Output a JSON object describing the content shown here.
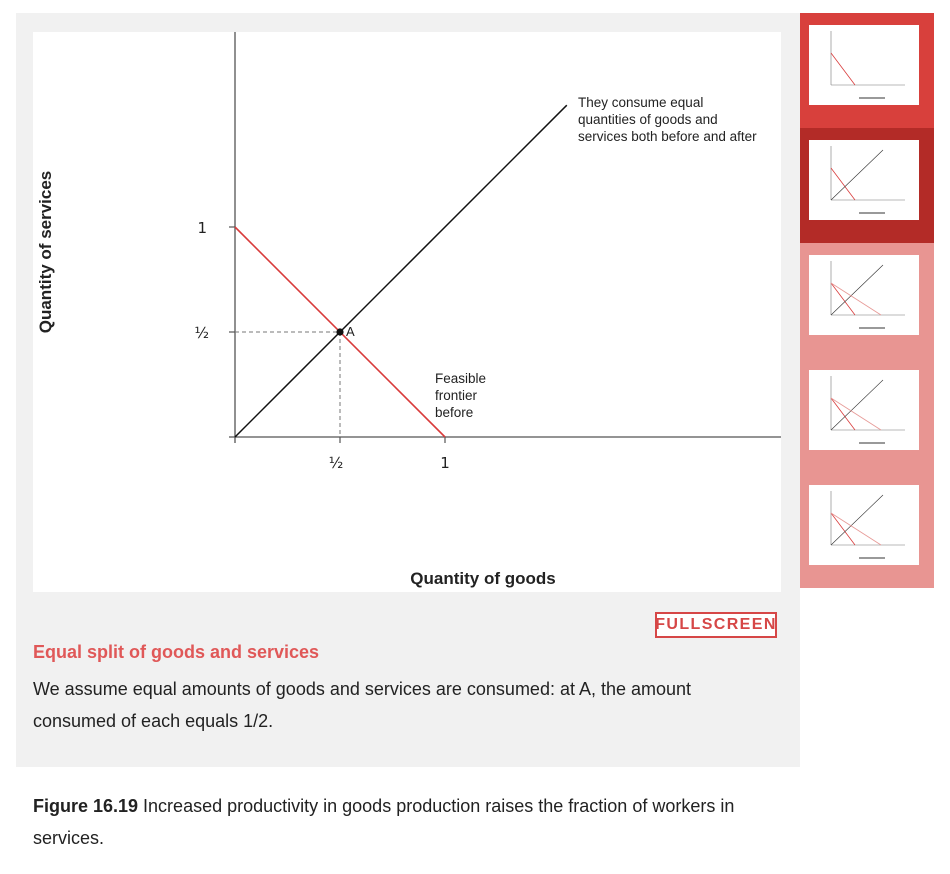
{
  "chart_data": {
    "type": "line",
    "xlabel": "Quantity of goods",
    "ylabel": "Quantity of services",
    "x_ticks": [
      "½",
      "1"
    ],
    "y_ticks": [
      "1",
      "½"
    ],
    "xlim": [
      0,
      4.8
    ],
    "ylim": [
      0,
      1.95
    ],
    "series": [
      {
        "name": "Feasible frontier before",
        "color": "#d93b3b",
        "points": [
          [
            0,
            1
          ],
          [
            1,
            0
          ]
        ]
      },
      {
        "name": "They consume equal quantities of goods and services both before and after",
        "color": "#111111",
        "points": [
          [
            0,
            0
          ],
          [
            3,
            3
          ]
        ]
      }
    ],
    "points": [
      {
        "label": "A",
        "x": 0.5,
        "y": 0.5
      }
    ],
    "annotations": {
      "diagonal_text": [
        "They consume equal",
        "quantities of goods and",
        "services both before and after"
      ],
      "frontier_text": [
        "Feasible",
        "frontier",
        "before"
      ]
    }
  },
  "fullscreen_label": "FULLSCREEN",
  "step": {
    "title": "Equal split of goods and services",
    "description": "We assume equal amounts of goods and services are consumed: at A, the amount consumed of each equals 1/2."
  },
  "caption": {
    "label": "Figure 16.19",
    "text": " Increased productivity in goods production raises the fraction of workers in services."
  },
  "thumbnails": {
    "count": 5,
    "active_index": 1,
    "colors": {
      "visited": "#d8403c",
      "active": "#b32b27",
      "unvisited": "#e89592"
    }
  }
}
